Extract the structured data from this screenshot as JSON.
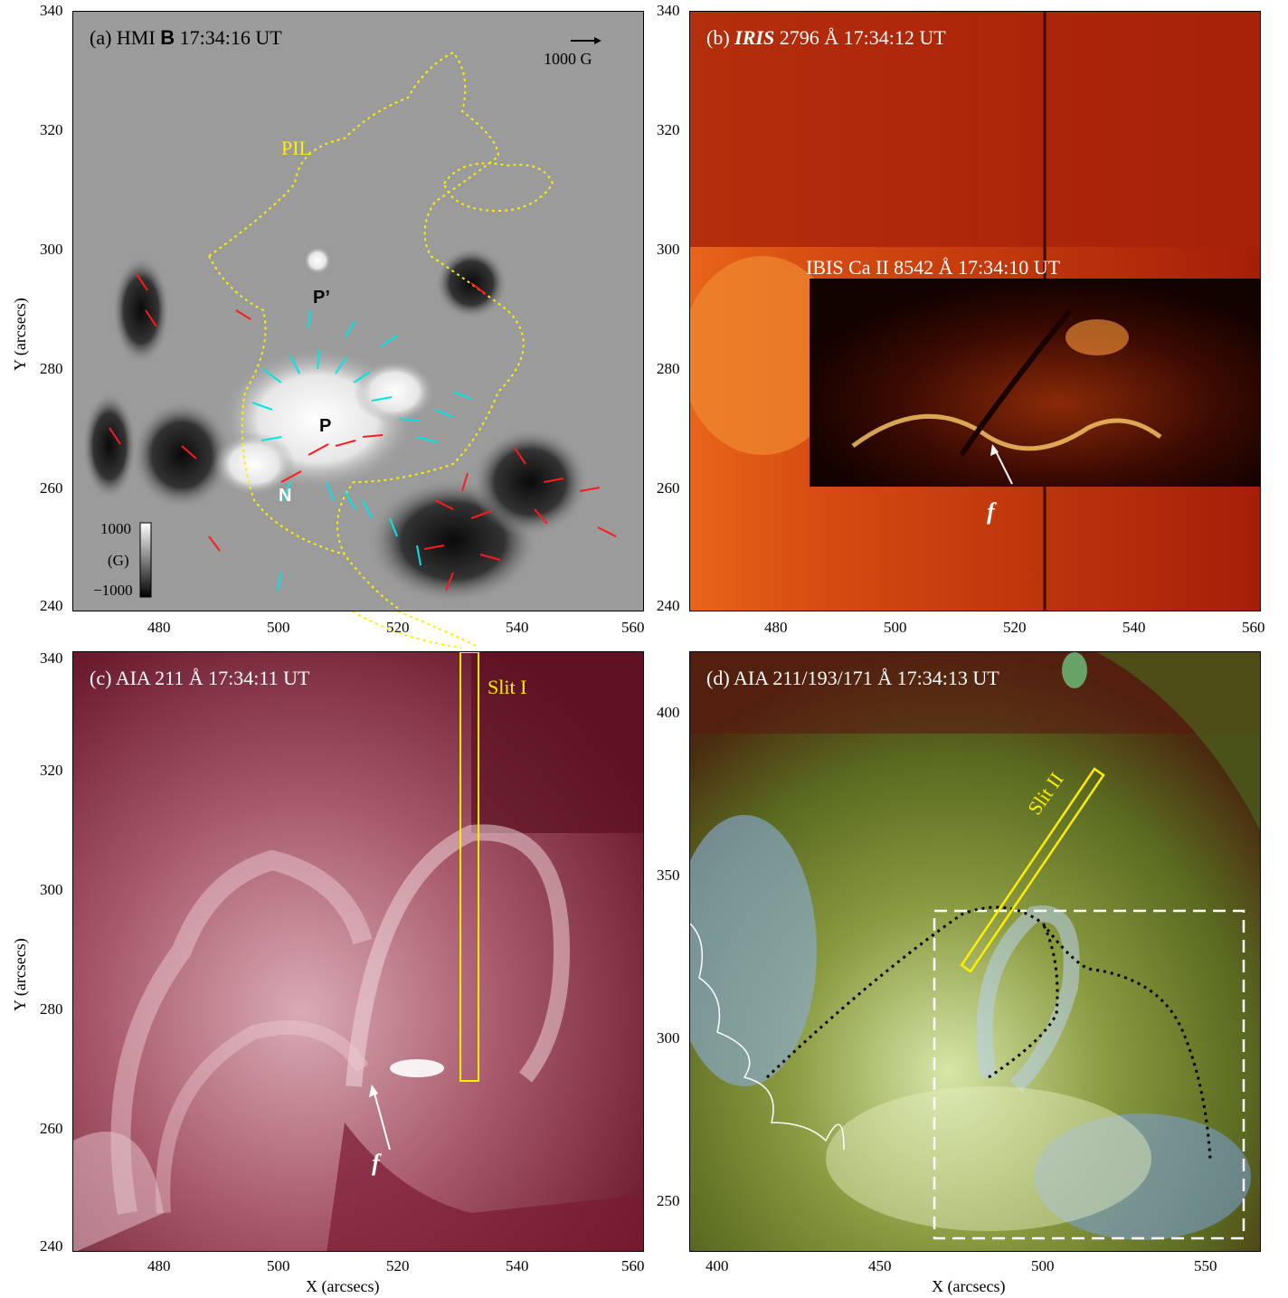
{
  "panel_a": {
    "title_prefix": "(a) HMI ",
    "title_bold": "B",
    "title_suffix": " 17:34:16 UT",
    "arrow_scale": "1000 G",
    "labels": {
      "pil": "PIL",
      "p_prime": "P’",
      "p": "P",
      "n": "N"
    },
    "colorbar": {
      "top": "1000",
      "unit": "(G)",
      "bottom": "−1000"
    }
  },
  "panel_b": {
    "title_prefix": "(b) ",
    "title_italic": "IRIS",
    "title_suffix": " 2796 Å 17:34:12 UT",
    "inset_title": "IBIS Ca II 8542 Å 17:34:10 UT",
    "feature_label": "f"
  },
  "panel_c": {
    "title": "(c) AIA 211 Å 17:34:11 UT",
    "slit_label": "Slit I",
    "feature_label": "f"
  },
  "panel_d": {
    "title": "(d) AIA 211/193/171 Å 17:34:13 UT",
    "slit_label": "Slit II"
  },
  "axes": {
    "y_label": "Y (arcsecs)",
    "x_label": "X (arcsecs)",
    "top_y_ticks": [
      "340",
      "320",
      "300",
      "280",
      "260",
      "240"
    ],
    "top_x_ticks": [
      "480",
      "500",
      "520",
      "540",
      "560"
    ],
    "bottom_left_y_ticks": [
      "340",
      "320",
      "300",
      "280",
      "260",
      "240"
    ],
    "bottom_left_x_ticks": [
      "480",
      "500",
      "520",
      "540",
      "560"
    ],
    "bottom_right_y_ticks": [
      "400",
      "350",
      "300",
      "250"
    ],
    "bottom_right_x_ticks": [
      "400",
      "450",
      "500",
      "550"
    ]
  },
  "colors": {
    "pil_line": "#ffee00",
    "positive_field_arrows": "#00e5e5",
    "negative_field_arrows": "#ff1a1a",
    "slit_box": "#ffee00"
  }
}
